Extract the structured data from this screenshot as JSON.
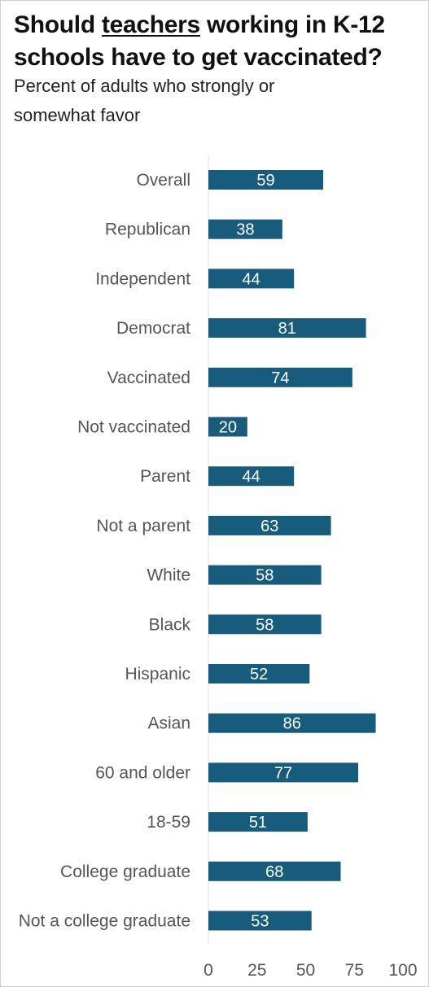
{
  "header": {
    "title_before": "Should ",
    "title_underlined": "teachers",
    "title_after": " working in K-12 schools have to get vaccinated?",
    "subtitle": "Percent of adults who strongly or somewhat favor"
  },
  "colors": {
    "bar": "#175c7c",
    "value_text": "#ffffff",
    "axis_line": "#dddddd",
    "label_text": "#555555"
  },
  "chart_data": {
    "type": "bar",
    "orientation": "horizontal",
    "title": "Should teachers working in K-12 schools have to get vaccinated?",
    "subtitle": "Percent of adults who strongly or somewhat favor",
    "categories": [
      "Overall",
      "Republican",
      "Independent",
      "Democrat",
      "Vaccinated",
      "Not vaccinated",
      "Parent",
      "Not a parent",
      "White",
      "Black",
      "Hispanic",
      "Asian",
      "60 and older",
      "18-59",
      "College graduate",
      "Not a college graduate"
    ],
    "values": [
      59,
      38,
      44,
      81,
      74,
      20,
      44,
      63,
      58,
      58,
      52,
      86,
      77,
      51,
      68,
      53
    ],
    "xlim": [
      0,
      100
    ],
    "xticks": [
      0,
      25,
      50,
      75,
      100
    ],
    "grid": false,
    "legend": "none"
  }
}
